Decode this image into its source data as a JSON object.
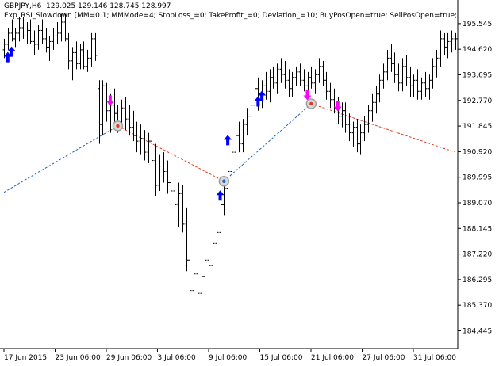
{
  "header": {
    "symbol": "GBPJPY,H6",
    "ohlc": "129.025 129.146 128.745 128.997",
    "expert": "Exp_RSI_Slowdown [MM=0.1; MMMode=4; StopLoss_=0; TakeProfit_=0; Deviation_=10; BuyPosOpen=true; SellPosOpen=true; BuyP"
  },
  "colors": {
    "background": "#ffffff",
    "axis": "#000000",
    "bar": "#000000",
    "buy_arrow": "#0000ff",
    "sell_arrow": "#ff00ff",
    "buy_line": "#1e64c8",
    "sell_line": "#e03c28",
    "deal_marker": "#a0a0a0"
  },
  "icons": {
    "buy": "up-arrow-icon",
    "sell": "down-arrow-icon",
    "deal": "deal-circle-icon"
  },
  "chart_data": {
    "type": "bar",
    "ylim": [
      183.8,
      196.0
    ],
    "y_ticks": [
      "195.545",
      "194.620",
      "193.695",
      "192.770",
      "191.845",
      "190.920",
      "189.995",
      "189.070",
      "188.145",
      "187.220",
      "186.295",
      "185.370",
      "184.445"
    ],
    "x_ticks": [
      "17 Jun 2015",
      "23 Jun 06:00",
      "29 Jun 06:00",
      "3 Jul 06:00",
      "9 Jul 06:00",
      "15 Jul 06:00",
      "21 Jul 06:00",
      "27 Jul 06:00",
      "31 Jul 06:00"
    ],
    "bar_count": 120,
    "ohlc_bars": [
      [
        194.6,
        195.0,
        194.3,
        194.8
      ],
      [
        194.8,
        195.4,
        194.6,
        195.2
      ],
      [
        195.2,
        195.7,
        194.9,
        195.0
      ],
      [
        195.0,
        195.4,
        194.7,
        195.2
      ],
      [
        195.2,
        195.8,
        194.9,
        195.4
      ],
      [
        195.4,
        195.8,
        195.0,
        195.1
      ],
      [
        195.1,
        195.6,
        194.8,
        195.3
      ],
      [
        195.3,
        195.7,
        194.8,
        194.9
      ],
      [
        194.9,
        195.3,
        194.4,
        194.8
      ],
      [
        194.8,
        195.5,
        194.6,
        195.3
      ],
      [
        195.3,
        195.7,
        194.8,
        195.0
      ],
      [
        195.0,
        195.4,
        194.5,
        194.7
      ],
      [
        194.7,
        195.1,
        194.2,
        194.9
      ],
      [
        194.9,
        195.4,
        194.6,
        195.1
      ],
      [
        195.1,
        195.6,
        194.8,
        195.2
      ],
      [
        195.2,
        195.9,
        194.9,
        195.6
      ],
      [
        195.6,
        195.9,
        194.9,
        195.0
      ],
      [
        195.0,
        195.2,
        193.9,
        194.2
      ],
      [
        194.2,
        194.7,
        193.5,
        194.5
      ],
      [
        194.5,
        194.9,
        193.9,
        194.1
      ],
      [
        194.1,
        194.8,
        193.9,
        194.6
      ],
      [
        194.6,
        194.9,
        193.9,
        194.0
      ],
      [
        194.0,
        194.6,
        193.8,
        194.3
      ],
      [
        194.3,
        195.2,
        194.0,
        195.0
      ],
      [
        195.0,
        195.2,
        194.2,
        194.4
      ],
      [
        193.2,
        193.5,
        191.2,
        191.9
      ],
      [
        191.9,
        193.5,
        191.5,
        193.3
      ],
      [
        193.3,
        193.4,
        192.0,
        192.4
      ],
      [
        192.4,
        193.0,
        191.6,
        192.6
      ],
      [
        192.6,
        193.2,
        191.9,
        192.3
      ],
      [
        192.3,
        192.6,
        191.6,
        192.0
      ],
      [
        192.0,
        192.8,
        191.8,
        192.5
      ],
      [
        192.5,
        192.9,
        191.7,
        192.1
      ],
      [
        192.1,
        192.6,
        191.5,
        191.8
      ],
      [
        191.8,
        192.4,
        191.3,
        191.5
      ],
      [
        191.5,
        192.0,
        190.9,
        191.3
      ],
      [
        191.3,
        191.9,
        190.8,
        191.4
      ],
      [
        191.4,
        191.7,
        190.6,
        190.9
      ],
      [
        190.9,
        191.6,
        190.5,
        191.3
      ],
      [
        191.3,
        191.6,
        190.3,
        190.6
      ],
      [
        190.6,
        191.2,
        189.3,
        189.7
      ],
      [
        189.7,
        190.8,
        189.5,
        190.4
      ],
      [
        190.4,
        190.9,
        189.8,
        190.2
      ],
      [
        190.2,
        190.6,
        189.4,
        189.8
      ],
      [
        189.8,
        190.3,
        189.1,
        189.5
      ],
      [
        189.5,
        190.1,
        188.6,
        189.0
      ],
      [
        189.0,
        189.8,
        188.2,
        189.4
      ],
      [
        189.4,
        189.7,
        188.0,
        188.3
      ],
      [
        188.3,
        188.9,
        186.6,
        187.0
      ],
      [
        187.0,
        187.6,
        185.6,
        185.9
      ],
      [
        185.9,
        186.8,
        185.0,
        186.5
      ],
      [
        186.5,
        186.9,
        185.4,
        185.8
      ],
      [
        185.8,
        186.7,
        185.5,
        186.4
      ],
      [
        186.4,
        187.3,
        186.2,
        187.0
      ],
      [
        187.0,
        187.6,
        186.4,
        186.8
      ],
      [
        186.8,
        187.9,
        186.6,
        187.6
      ],
      [
        187.6,
        188.3,
        187.3,
        188.0
      ],
      [
        188.0,
        189.3,
        187.8,
        189.0
      ],
      [
        189.0,
        189.9,
        188.6,
        189.6
      ],
      [
        189.6,
        190.5,
        189.3,
        190.2
      ],
      [
        190.2,
        191.2,
        189.9,
        190.9
      ],
      [
        190.9,
        191.8,
        190.6,
        191.5
      ],
      [
        191.5,
        192.0,
        190.9,
        191.2
      ],
      [
        191.2,
        192.1,
        190.9,
        191.9
      ],
      [
        191.9,
        192.5,
        191.5,
        192.2
      ],
      [
        192.2,
        192.8,
        191.8,
        192.6
      ],
      [
        192.6,
        193.5,
        192.3,
        193.2
      ],
      [
        193.2,
        193.6,
        192.4,
        192.8
      ],
      [
        192.8,
        193.5,
        192.5,
        193.3
      ],
      [
        193.3,
        193.8,
        192.8,
        193.1
      ],
      [
        193.1,
        193.9,
        192.7,
        193.6
      ],
      [
        193.6,
        194.0,
        193.2,
        193.4
      ],
      [
        193.4,
        194.1,
        193.0,
        193.9
      ],
      [
        193.9,
        194.3,
        193.4,
        193.7
      ],
      [
        193.7,
        194.2,
        193.2,
        193.5
      ],
      [
        193.5,
        193.9,
        192.9,
        193.2
      ],
      [
        193.2,
        193.8,
        192.9,
        193.6
      ],
      [
        193.6,
        194.0,
        193.3,
        193.8
      ],
      [
        193.8,
        194.1,
        193.3,
        193.5
      ],
      [
        193.5,
        193.9,
        193.1,
        193.3
      ],
      [
        193.3,
        193.8,
        192.9,
        193.6
      ],
      [
        193.6,
        194.0,
        193.2,
        193.4
      ],
      [
        193.4,
        193.9,
        193.0,
        193.7
      ],
      [
        193.7,
        194.3,
        193.4,
        194.0
      ],
      [
        194.0,
        194.2,
        193.3,
        193.5
      ],
      [
        193.5,
        193.8,
        192.8,
        193.1
      ],
      [
        193.1,
        193.4,
        192.5,
        192.8
      ],
      [
        192.8,
        193.2,
        192.3,
        192.5
      ],
      [
        192.5,
        192.9,
        191.9,
        192.2
      ],
      [
        192.2,
        192.7,
        191.8,
        192.4
      ],
      [
        192.4,
        192.7,
        191.6,
        191.9
      ],
      [
        191.9,
        192.3,
        191.3,
        191.6
      ],
      [
        191.6,
        192.0,
        191.1,
        191.8
      ],
      [
        191.8,
        192.1,
        190.9,
        191.2
      ],
      [
        191.2,
        191.9,
        190.8,
        191.6
      ],
      [
        191.6,
        192.2,
        191.3,
        191.9
      ],
      [
        191.9,
        192.6,
        191.6,
        192.4
      ],
      [
        192.4,
        193.0,
        192.0,
        192.7
      ],
      [
        192.7,
        193.3,
        192.3,
        193.0
      ],
      [
        193.0,
        193.7,
        192.7,
        193.5
      ],
      [
        193.5,
        194.1,
        193.2,
        193.8
      ],
      [
        193.8,
        194.6,
        193.5,
        194.3
      ],
      [
        194.3,
        194.8,
        193.8,
        194.1
      ],
      [
        194.1,
        194.5,
        193.4,
        193.7
      ],
      [
        193.7,
        194.1,
        193.1,
        193.4
      ],
      [
        193.4,
        194.3,
        193.1,
        194.0
      ],
      [
        194.0,
        194.4,
        193.3,
        193.6
      ],
      [
        193.6,
        194.0,
        192.9,
        193.3
      ],
      [
        193.3,
        193.7,
        192.9,
        193.5
      ],
      [
        193.5,
        193.9,
        192.8,
        193.1
      ],
      [
        193.1,
        193.6,
        192.8,
        193.4
      ],
      [
        193.4,
        193.8,
        192.9,
        193.2
      ],
      [
        193.2,
        193.7,
        192.8,
        193.5
      ],
      [
        193.5,
        194.3,
        193.2,
        194.0
      ],
      [
        194.0,
        194.6,
        193.6,
        194.3
      ],
      [
        194.3,
        195.3,
        194.0,
        195.0
      ],
      [
        195.0,
        195.2,
        194.4,
        194.7
      ],
      [
        194.7,
        195.2,
        194.3,
        194.9
      ],
      [
        194.9,
        195.3,
        194.5,
        195.0
      ],
      [
        195.0,
        195.2,
        194.6,
        195.0
      ]
    ],
    "signals": [
      {
        "type": "buy",
        "bar": 1,
        "price": 194.35
      },
      {
        "type": "buy",
        "bar": 2,
        "price": 194.55
      },
      {
        "type": "sell",
        "bar": 28,
        "price": 192.75
      },
      {
        "type": "buy",
        "bar": 57,
        "price": 189.35
      },
      {
        "type": "buy",
        "bar": 59,
        "price": 191.35
      },
      {
        "type": "buy",
        "bar": 67,
        "price": 192.75
      },
      {
        "type": "buy",
        "bar": 68,
        "price": 192.95
      },
      {
        "type": "sell",
        "bar": 80,
        "price": 192.95
      },
      {
        "type": "sell",
        "bar": 88,
        "price": 192.55
      }
    ],
    "deals": [
      {
        "type": "sell",
        "bar": 30,
        "price": 191.85
      },
      {
        "type": "buy",
        "bar": 58,
        "price": 189.85
      },
      {
        "type": "sell",
        "bar": 81,
        "price": 192.65
      }
    ],
    "trade_lines": [
      {
        "type": "buy",
        "from": [
          0,
          189.45
        ],
        "to": [
          30,
          191.85
        ]
      },
      {
        "type": "sell",
        "from": [
          30,
          191.85
        ],
        "to": [
          58,
          189.85
        ]
      },
      {
        "type": "buy",
        "from": [
          58,
          189.85
        ],
        "to": [
          81,
          192.65
        ]
      },
      {
        "type": "sell",
        "from": [
          81,
          192.65
        ],
        "to": [
          119,
          190.9
        ]
      }
    ]
  }
}
